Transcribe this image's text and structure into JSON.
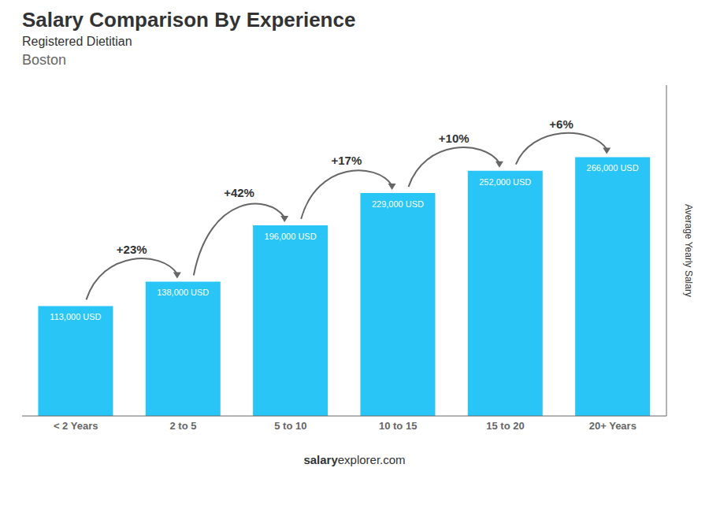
{
  "chart_data": {
    "type": "bar",
    "title": "Salary Comparison By Experience",
    "subtitle": "Registered Dietitian",
    "caption": "Boston",
    "y_label": "Average Yearly Salary",
    "footer": [
      "salary",
      "explorer.com"
    ],
    "categories": [
      "< 2 Years",
      "2 to 5",
      "5 to 10",
      "10 to 15",
      "15 to 20",
      "20+ Years"
    ],
    "values": [
      113000,
      138000,
      196000,
      229000,
      252000,
      266000
    ],
    "value_labels": [
      "113,000 USD",
      "138,000 USD",
      "196,000 USD",
      "229,000 USD",
      "252,000 USD",
      "266,000 USD"
    ],
    "data_labels": true,
    "annotations": [
      "+23%",
      "+42%",
      "+17%",
      "+10%",
      "+6%"
    ],
    "color": "#29C5F6",
    "ylim": [
      0,
      340000
    ],
    "tick_labels": "x",
    "grid": false
  }
}
